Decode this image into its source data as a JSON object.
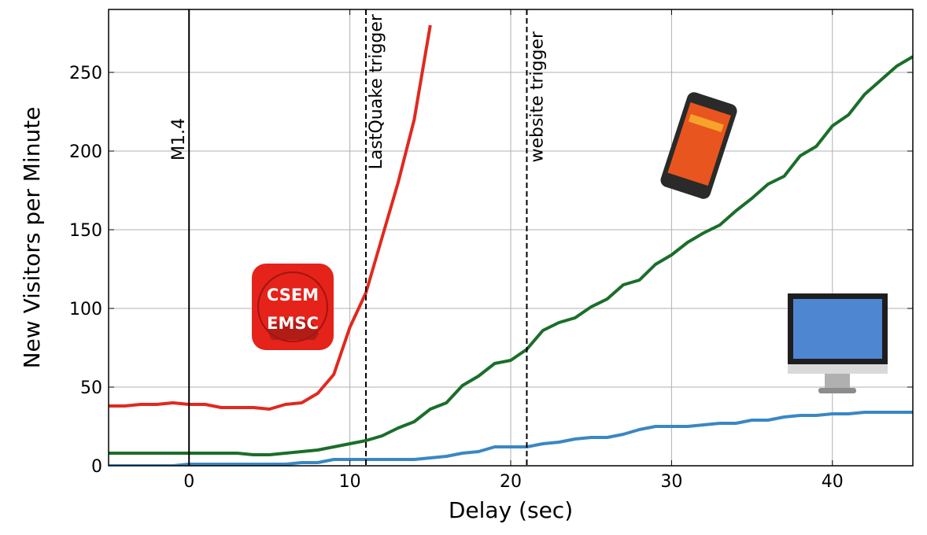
{
  "chart_data": {
    "type": "line",
    "xlabel": "Delay (sec)",
    "ylabel": "New Visitors per Minute",
    "x": [
      -5,
      -4,
      -3,
      -2,
      -1,
      0,
      1,
      2,
      3,
      4,
      5,
      6,
      7,
      8,
      9,
      10,
      11,
      12,
      13,
      14,
      15,
      16,
      17,
      18,
      19,
      20,
      21,
      22,
      23,
      24,
      25,
      26,
      27,
      28,
      29,
      30,
      31,
      32,
      33,
      34,
      35,
      36,
      37,
      38,
      39,
      40,
      41,
      42,
      43,
      44,
      45
    ],
    "series": [
      {
        "color": "#3a87c4",
        "values": [
          0,
          0,
          0,
          0,
          0,
          1,
          1,
          1,
          1,
          1,
          1,
          1,
          2,
          2,
          4,
          4,
          4,
          4,
          4,
          4,
          5,
          6,
          8,
          9,
          12,
          12,
          12,
          14,
          15,
          17,
          18,
          18,
          20,
          23,
          25,
          25,
          25,
          26,
          27,
          27,
          29,
          29,
          31,
          32,
          32,
          33,
          33,
          34,
          34,
          34,
          34
        ]
      },
      {
        "color": "#1a6e2a",
        "values": [
          8,
          8,
          8,
          8,
          8,
          8,
          8,
          8,
          8,
          7,
          7,
          8,
          9,
          10,
          12,
          14,
          16,
          19,
          24,
          28,
          36,
          40,
          51,
          57,
          65,
          67,
          74,
          86,
          91,
          94,
          101,
          106,
          115,
          118,
          128,
          134,
          142,
          148,
          153,
          162,
          170,
          179,
          184,
          197,
          203,
          216,
          223,
          236,
          245,
          254,
          260
        ]
      },
      {
        "color": "#e0291f",
        "values": [
          38,
          38,
          39,
          39,
          40,
          39,
          39,
          37,
          37,
          37,
          36,
          39,
          40,
          46,
          58,
          88,
          110,
          145,
          180,
          220,
          280,
          null,
          null,
          null,
          null,
          null,
          null,
          null,
          null,
          null,
          null,
          null,
          null,
          null,
          null,
          null,
          null,
          null,
          null,
          null,
          null,
          null,
          null,
          null,
          null,
          null,
          null,
          null,
          null,
          null,
          null
        ]
      }
    ],
    "events": [
      {
        "x": 0,
        "label": "M1.4",
        "style": "solid"
      },
      {
        "x": 11,
        "label": "LastQuake trigger",
        "style": "dashed"
      },
      {
        "x": 21,
        "label": "website trigger",
        "style": "dashed"
      }
    ],
    "logo": [
      "CSEM",
      "EMSC"
    ],
    "xlim": [
      -5,
      45
    ],
    "xticks": [
      0,
      10,
      20,
      30,
      40
    ],
    "ylim": [
      0,
      290
    ],
    "yticks": [
      0,
      50,
      100,
      150,
      200,
      250
    ],
    "grid": true
  }
}
